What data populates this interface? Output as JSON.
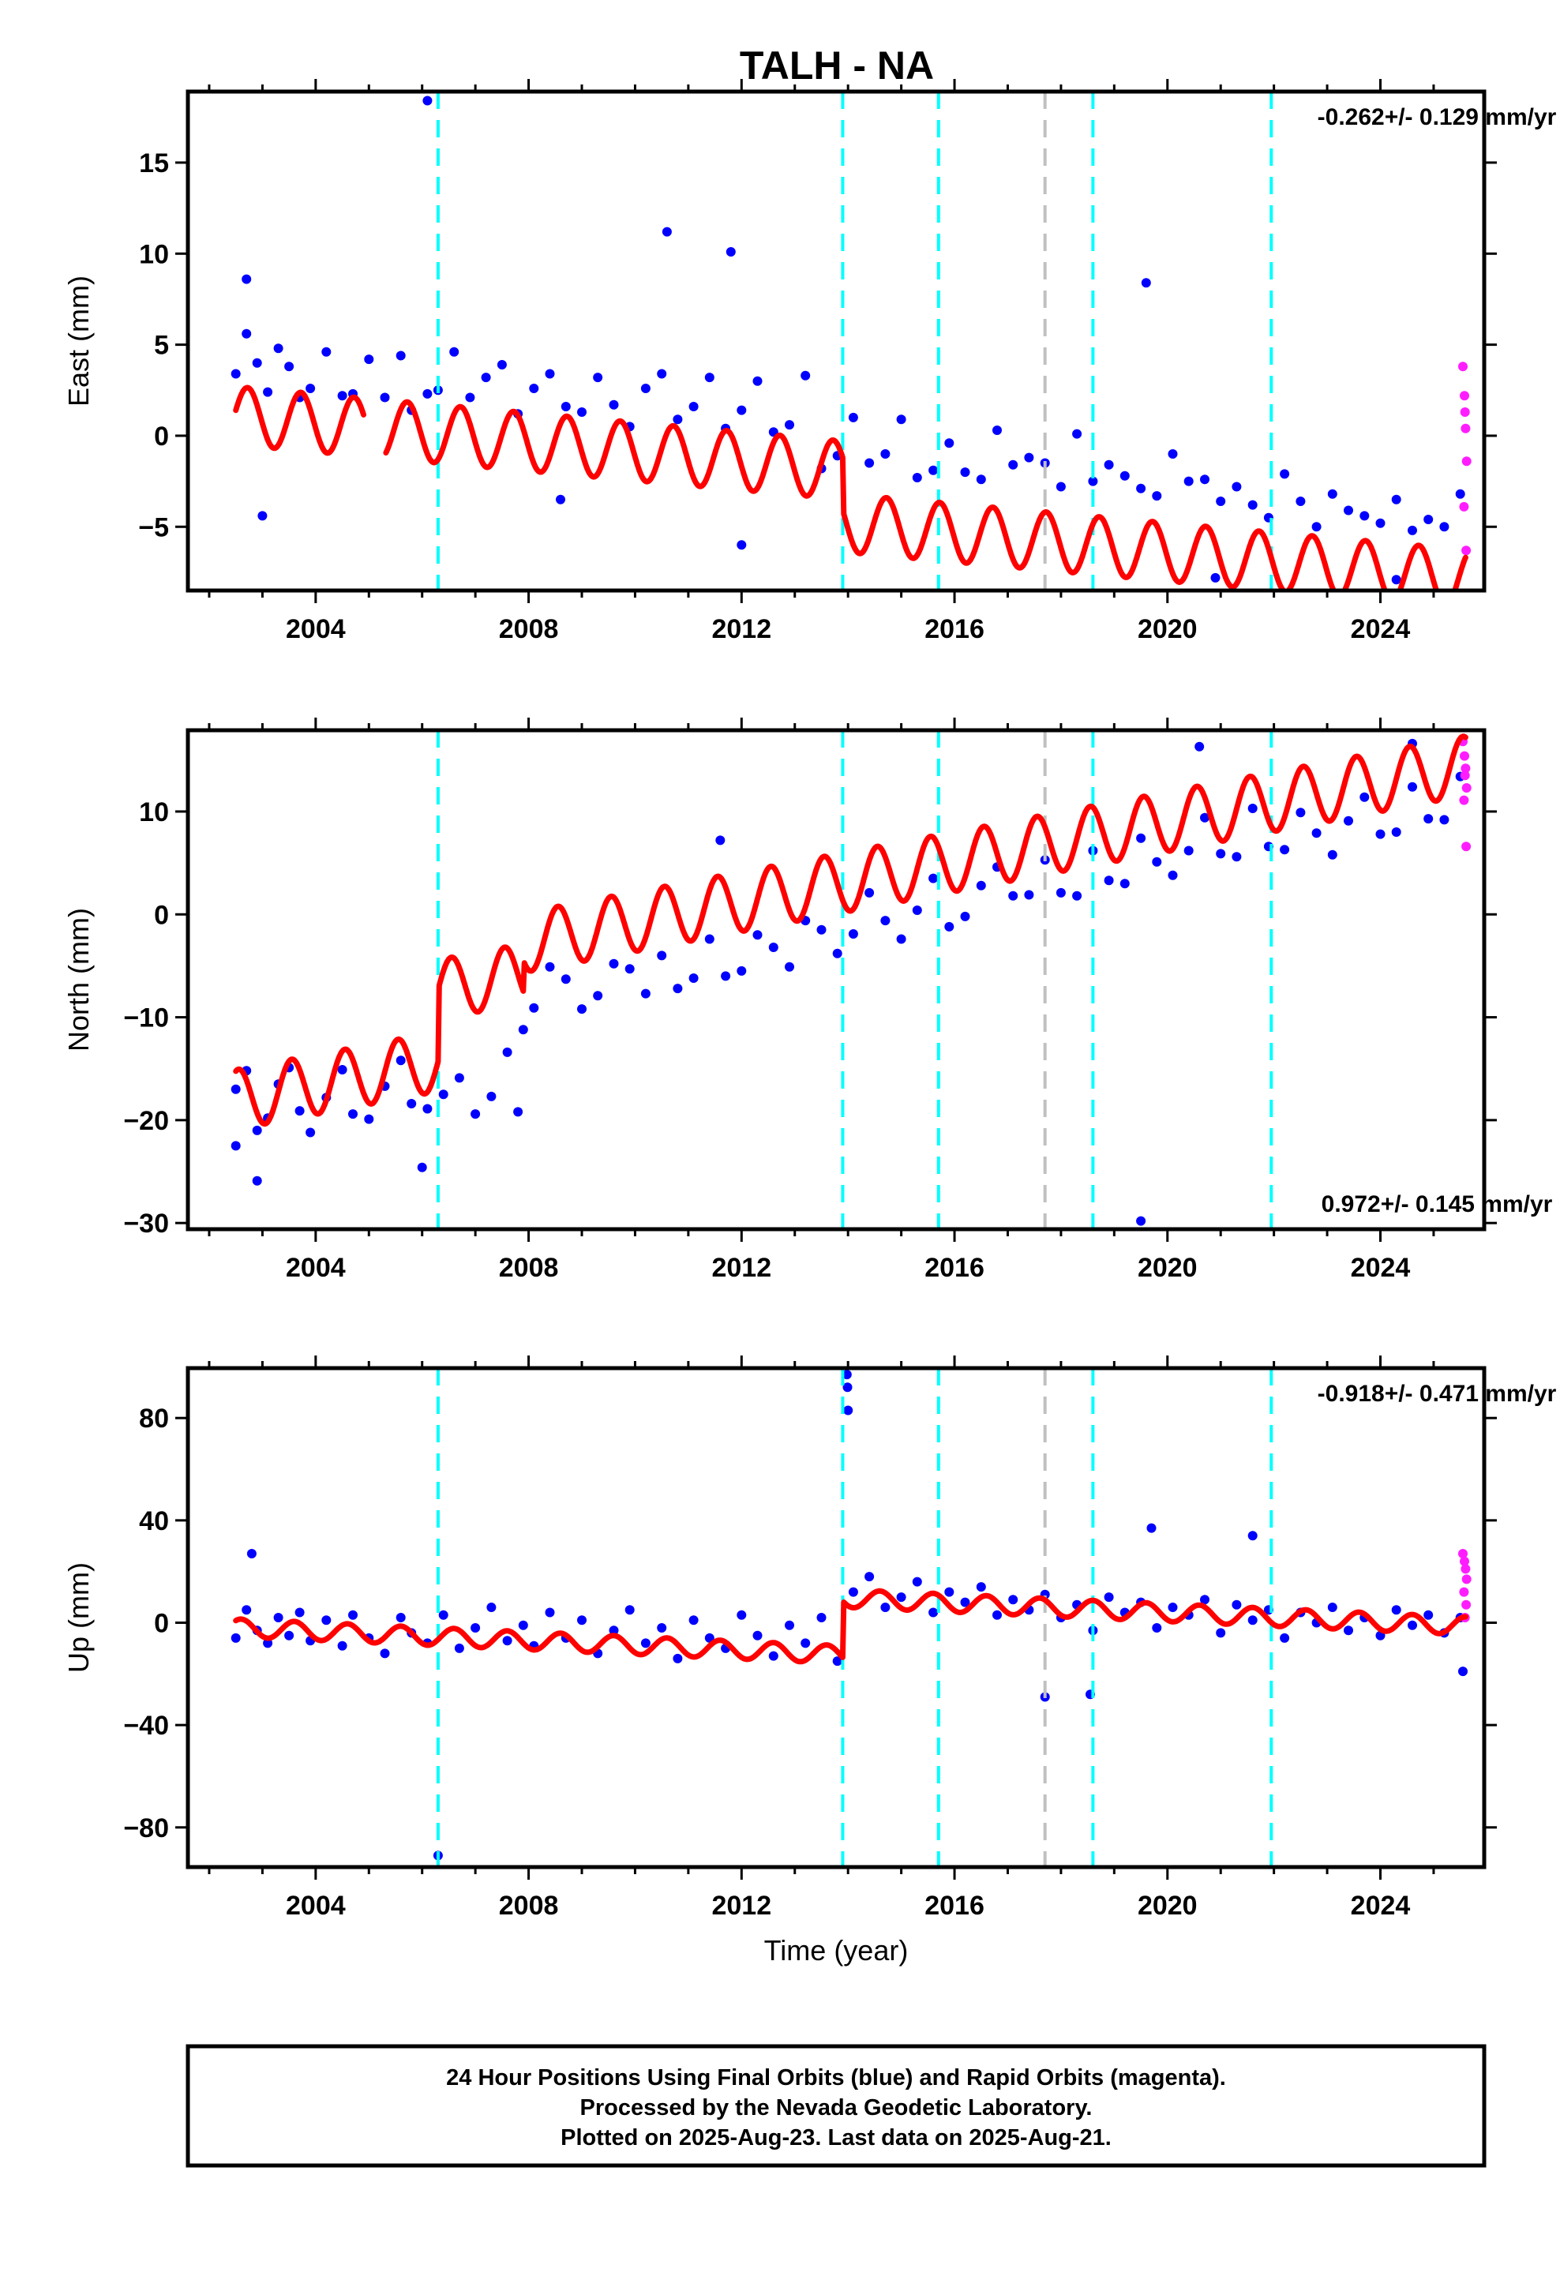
{
  "title": "TALH - NA",
  "colors": {
    "final_orbits": "#0000ff",
    "rapid_orbits": "#ff1dff",
    "model": "#ff0000",
    "equipment_change": "#00ffff",
    "earthquake": "#c0c0c0"
  },
  "footer": {
    "line1": "24 Hour Positions Using Final Orbits (blue) and Rapid Orbits (magenta).",
    "line2": "Processed by the Nevada Geodetic Laboratory.",
    "line3": "Plotted on 2025-Aug-23. Last data on 2025-Aug-21."
  },
  "chart_data": [
    {
      "type": "scatter",
      "component": "east",
      "ylabel": "East (mm)",
      "xlabel": "",
      "xlim": [
        2001.6,
        2025.95
      ],
      "ylim": [
        -8.5,
        18.9
      ],
      "xticks": [
        2004,
        2008,
        2012,
        2016,
        2020,
        2024
      ],
      "xtick_labels": [
        "2004",
        "2008",
        "2012",
        "2016",
        "2020",
        "2024"
      ],
      "yticks": [
        -5,
        0,
        5,
        10,
        15
      ],
      "ytick_labels": [
        "−5",
        "0",
        "5",
        "10",
        "15"
      ],
      "rate_label": "-0.262+/- 0.129 mm/yr",
      "rate_position": "top-right",
      "series": [
        {
          "role": "final orbits",
          "color": "#0000ff",
          "x": [
            2002.5,
            2002.7,
            2002.9,
            2003.1,
            2003.3,
            2003.5,
            2003.7,
            2003.9,
            2004.2,
            2004.5,
            2004.7,
            2005.0,
            2005.3,
            2005.6,
            2005.8,
            2006.1,
            2006.3,
            2006.6,
            2006.9,
            2007.2,
            2007.5,
            2007.8,
            2008.1,
            2008.4,
            2008.7,
            2009.0,
            2009.3,
            2009.6,
            2009.9,
            2010.2,
            2010.5,
            2010.8,
            2011.1,
            2011.4,
            2011.7,
            2012.0,
            2012.3,
            2012.6,
            2012.9,
            2013.2,
            2013.5,
            2013.8,
            2014.1,
            2014.4,
            2014.7,
            2015.0,
            2015.3,
            2015.6,
            2015.9,
            2016.2,
            2016.5,
            2016.8,
            2017.1,
            2017.4,
            2017.7,
            2018.0,
            2018.3,
            2018.6,
            2018.9,
            2019.2,
            2019.5,
            2019.8,
            2020.1,
            2020.4,
            2020.7,
            2021.0,
            2021.3,
            2021.6,
            2021.9,
            2022.2,
            2022.5,
            2022.8,
            2023.1,
            2023.4,
            2023.7,
            2024.0,
            2024.3,
            2024.6,
            2024.9,
            2025.2,
            2025.5,
            2002.7,
            2003.0,
            2006.1,
            2010.6,
            2011.8,
            2019.6,
            2020.9,
            2024.3,
            2012.0,
            2008.6
          ],
          "y": [
            3.4,
            5.6,
            4.0,
            2.4,
            4.8,
            3.8,
            2.1,
            2.6,
            4.6,
            2.2,
            2.3,
            4.2,
            2.1,
            4.4,
            1.4,
            2.3,
            2.5,
            4.6,
            2.1,
            3.2,
            3.9,
            1.2,
            2.6,
            3.4,
            1.6,
            1.3,
            3.2,
            1.7,
            0.5,
            2.6,
            3.4,
            0.9,
            1.6,
            3.2,
            0.4,
            1.4,
            3.0,
            0.2,
            0.6,
            3.3,
            -1.8,
            -1.1,
            1.0,
            -1.5,
            -1.0,
            0.9,
            -2.3,
            -1.9,
            -0.4,
            -2.0,
            -2.4,
            0.3,
            -1.6,
            -1.2,
            -1.5,
            -2.8,
            0.1,
            -2.5,
            -1.6,
            -2.2,
            -2.9,
            -3.3,
            -1.0,
            -2.5,
            -2.4,
            -3.6,
            -2.8,
            -3.8,
            -4.5,
            -2.1,
            -3.6,
            -5.0,
            -3.2,
            -4.1,
            -4.4,
            -4.8,
            -3.5,
            -5.2,
            -4.6,
            -5.0,
            -3.2,
            8.6,
            -4.4,
            18.4,
            11.2,
            10.1,
            8.4,
            -7.8,
            -7.9,
            -6.0,
            -3.5
          ]
        },
        {
          "role": "rapid orbits",
          "color": "#ff1dff",
          "x": [
            2025.55,
            2025.58,
            2025.6,
            2025.62,
            2025.57,
            2025.61,
            2025.59
          ],
          "y": [
            3.8,
            2.2,
            0.4,
            -1.4,
            -3.9,
            -6.3,
            1.3
          ]
        }
      ],
      "model": {
        "color": "#ff0000",
        "intercept": 1.1,
        "trend_mm_per_yr": -0.262,
        "annual_amplitude": 1.6,
        "annual_peak_phase": 0.72,
        "offsets": [
          {
            "year": 2013.9,
            "offset_mm": -2.9
          }
        ],
        "curve_breaks": [
          2004.9,
          2005.3
        ]
      },
      "event_lines": [
        {
          "x": 2006.3,
          "kind": "equipment_change",
          "color": "#00ffff"
        },
        {
          "x": 2013.9,
          "kind": "equipment_change",
          "color": "#00ffff"
        },
        {
          "x": 2015.7,
          "kind": "equipment_change",
          "color": "#00ffff"
        },
        {
          "x": 2017.7,
          "kind": "earthquake",
          "color": "#c0c0c0"
        },
        {
          "x": 2018.6,
          "kind": "equipment_change",
          "color": "#00ffff"
        },
        {
          "x": 2021.95,
          "kind": "equipment_change",
          "color": "#00ffff"
        }
      ]
    },
    {
      "type": "scatter",
      "component": "north",
      "ylabel": "North (mm)",
      "xlabel": "",
      "xlim": [
        2001.6,
        2025.95
      ],
      "ylim": [
        -30.6,
        17.9
      ],
      "xticks": [
        2004,
        2008,
        2012,
        2016,
        2020,
        2024
      ],
      "xtick_labels": [
        "2004",
        "2008",
        "2012",
        "2016",
        "2020",
        "2024"
      ],
      "yticks": [
        -30,
        -20,
        -10,
        0,
        10
      ],
      "ytick_labels": [
        "−30",
        "−20",
        "−10",
        "0",
        "10"
      ],
      "rate_label": "0.972+/- 0.145 mm/yr",
      "rate_position": "bottom-right",
      "series": [
        {
          "role": "final orbits",
          "color": "#0000ff",
          "x": [
            2002.5,
            2002.7,
            2002.9,
            2003.1,
            2003.3,
            2003.5,
            2003.7,
            2003.9,
            2004.2,
            2004.5,
            2004.7,
            2005.0,
            2005.3,
            2005.6,
            2005.8,
            2006.1,
            2006.4,
            2006.7,
            2007.0,
            2007.3,
            2007.6,
            2007.9,
            2008.1,
            2008.4,
            2008.7,
            2009.0,
            2009.3,
            2009.6,
            2009.9,
            2010.2,
            2010.5,
            2010.8,
            2011.1,
            2011.4,
            2011.7,
            2012.0,
            2012.3,
            2012.6,
            2012.9,
            2013.2,
            2013.5,
            2013.8,
            2014.1,
            2014.4,
            2014.7,
            2015.0,
            2015.3,
            2015.6,
            2015.9,
            2016.2,
            2016.5,
            2016.8,
            2017.1,
            2017.4,
            2017.7,
            2018.0,
            2018.3,
            2018.6,
            2018.9,
            2019.2,
            2019.5,
            2019.8,
            2020.1,
            2020.4,
            2020.7,
            2021.0,
            2021.3,
            2021.6,
            2021.9,
            2022.2,
            2022.5,
            2022.8,
            2023.1,
            2023.4,
            2023.7,
            2024.0,
            2024.3,
            2024.6,
            2024.9,
            2025.2,
            2025.5,
            2002.9,
            2006.0,
            2007.8,
            2011.6,
            2019.5,
            2020.6,
            2024.6,
            2002.5
          ],
          "y": [
            -17.0,
            -15.2,
            -21.0,
            -19.8,
            -16.5,
            -14.9,
            -19.1,
            -21.2,
            -17.8,
            -15.1,
            -19.4,
            -19.9,
            -16.7,
            -14.2,
            -18.4,
            -18.9,
            -17.5,
            -15.9,
            -19.4,
            -17.7,
            -13.4,
            -11.2,
            -9.1,
            -5.1,
            -6.3,
            -9.2,
            -7.9,
            -4.8,
            -5.3,
            -7.7,
            -4.0,
            -7.2,
            -6.2,
            -2.4,
            -6.0,
            -5.5,
            -2.0,
            -3.2,
            -5.1,
            -0.6,
            -1.5,
            -3.8,
            -1.9,
            2.1,
            -0.6,
            -2.4,
            0.4,
            3.5,
            -1.2,
            -0.2,
            2.8,
            4.6,
            1.8,
            1.9,
            5.3,
            2.1,
            1.8,
            6.2,
            3.3,
            3.0,
            7.4,
            5.1,
            3.8,
            6.2,
            9.4,
            5.9,
            5.6,
            10.3,
            6.6,
            6.3,
            9.9,
            7.9,
            5.8,
            9.1,
            11.4,
            7.8,
            8.0,
            12.4,
            9.3,
            9.2,
            13.4,
            -25.9,
            -24.6,
            -19.2,
            7.2,
            -29.8,
            16.3,
            16.6,
            -22.5
          ]
        },
        {
          "role": "rapid orbits",
          "color": "#ff1dff",
          "x": [
            2025.55,
            2025.58,
            2025.6,
            2025.62,
            2025.57,
            2025.61,
            2025.59
          ],
          "y": [
            16.8,
            15.4,
            14.2,
            12.3,
            11.1,
            6.6,
            13.5
          ]
        }
      ],
      "model": {
        "color": "#ff0000",
        "intercept": -18.0,
        "trend_mm_per_yr": 0.972,
        "annual_amplitude": 2.9,
        "annual_peak_phase": 0.55,
        "offsets": [
          {
            "year": 2006.3,
            "offset_mm": 7.0
          },
          {
            "year": 2007.9,
            "offset_mm": 3.0
          }
        ],
        "curve_breaks": []
      },
      "event_lines": [
        {
          "x": 2006.3,
          "kind": "equipment_change",
          "color": "#00ffff"
        },
        {
          "x": 2013.9,
          "kind": "equipment_change",
          "color": "#00ffff"
        },
        {
          "x": 2015.7,
          "kind": "equipment_change",
          "color": "#00ffff"
        },
        {
          "x": 2017.7,
          "kind": "earthquake",
          "color": "#c0c0c0"
        },
        {
          "x": 2018.6,
          "kind": "equipment_change",
          "color": "#00ffff"
        },
        {
          "x": 2021.95,
          "kind": "equipment_change",
          "color": "#00ffff"
        }
      ]
    },
    {
      "type": "scatter",
      "component": "up",
      "ylabel": "Up (mm)",
      "xlabel": "Time (year)",
      "xlim": [
        2001.6,
        2025.95
      ],
      "ylim": [
        -95.5,
        99.5
      ],
      "xticks": [
        2004,
        2008,
        2012,
        2016,
        2020,
        2024
      ],
      "xtick_labels": [
        "2004",
        "2008",
        "2012",
        "2016",
        "2020",
        "2024"
      ],
      "yticks": [
        -80,
        -40,
        0,
        40,
        80
      ],
      "ytick_labels": [
        "−80",
        "−40",
        "0",
        "40",
        "80"
      ],
      "rate_label": "-0.918+/- 0.471 mm/yr",
      "rate_position": "top-right",
      "series": [
        {
          "role": "final orbits",
          "color": "#0000ff",
          "x": [
            2002.5,
            2002.7,
            2002.9,
            2003.1,
            2003.3,
            2003.5,
            2003.7,
            2003.9,
            2004.2,
            2004.5,
            2004.7,
            2005.0,
            2005.3,
            2005.6,
            2005.8,
            2006.1,
            2006.4,
            2006.7,
            2007.0,
            2007.3,
            2007.6,
            2007.9,
            2008.1,
            2008.4,
            2008.7,
            2009.0,
            2009.3,
            2009.6,
            2009.9,
            2010.2,
            2010.5,
            2010.8,
            2011.1,
            2011.4,
            2011.7,
            2012.0,
            2012.3,
            2012.6,
            2012.9,
            2013.2,
            2013.5,
            2013.8,
            2014.1,
            2014.4,
            2014.7,
            2015.0,
            2015.3,
            2015.6,
            2015.9,
            2016.2,
            2016.5,
            2016.8,
            2017.1,
            2017.4,
            2017.7,
            2018.0,
            2018.3,
            2018.6,
            2018.9,
            2019.2,
            2019.5,
            2019.8,
            2020.1,
            2020.4,
            2020.7,
            2021.0,
            2021.3,
            2021.6,
            2021.9,
            2022.2,
            2022.5,
            2022.8,
            2023.1,
            2023.4,
            2023.7,
            2024.0,
            2024.3,
            2024.6,
            2024.9,
            2025.2,
            2025.5,
            2002.8,
            2006.3,
            2013.98,
            2013.99,
            2014.0,
            2017.7,
            2018.55,
            2019.7,
            2021.6,
            2025.55
          ],
          "y": [
            -6,
            5,
            -3,
            -8,
            2,
            -5,
            4,
            -7,
            1,
            -9,
            3,
            -6,
            -12,
            2,
            -4,
            -8,
            3,
            -10,
            -2,
            6,
            -7,
            -1,
            -9,
            4,
            -6,
            1,
            -12,
            -3,
            5,
            -8,
            -2,
            -14,
            1,
            -6,
            -10,
            3,
            -5,
            -13,
            -1,
            -8,
            2,
            -15,
            12,
            18,
            6,
            10,
            16,
            4,
            12,
            8,
            14,
            3,
            9,
            5,
            11,
            2,
            7,
            -3,
            10,
            4,
            8,
            -2,
            6,
            3,
            9,
            -4,
            7,
            1,
            5,
            -6,
            4,
            0,
            6,
            -3,
            2,
            -5,
            5,
            -1,
            3,
            -4,
            2,
            27,
            -91,
            97,
            92,
            83,
            -29,
            -28,
            37,
            34,
            -19
          ]
        },
        {
          "role": "rapid orbits",
          "color": "#ff1dff",
          "x": [
            2025.55,
            2025.58,
            2025.6,
            2025.62,
            2025.57,
            2025.61,
            2025.59
          ],
          "y": [
            27,
            24,
            21,
            17,
            12,
            7,
            2
          ]
        }
      ],
      "model": {
        "color": "#ff0000",
        "intercept": -2.0,
        "trend_mm_per_yr": -0.918,
        "annual_amplitude": 3.5,
        "annual_peak_phase": 0.6,
        "offsets": [
          {
            "year": 2013.9,
            "offset_mm": 22.0
          }
        ],
        "curve_breaks": []
      },
      "event_lines": [
        {
          "x": 2006.3,
          "kind": "equipment_change",
          "color": "#00ffff"
        },
        {
          "x": 2013.9,
          "kind": "equipment_change",
          "color": "#00ffff"
        },
        {
          "x": 2015.7,
          "kind": "equipment_change",
          "color": "#00ffff"
        },
        {
          "x": 2017.7,
          "kind": "earthquake",
          "color": "#c0c0c0"
        },
        {
          "x": 2018.6,
          "kind": "equipment_change",
          "color": "#00ffff"
        },
        {
          "x": 2021.95,
          "kind": "equipment_change",
          "color": "#00ffff"
        }
      ]
    }
  ]
}
